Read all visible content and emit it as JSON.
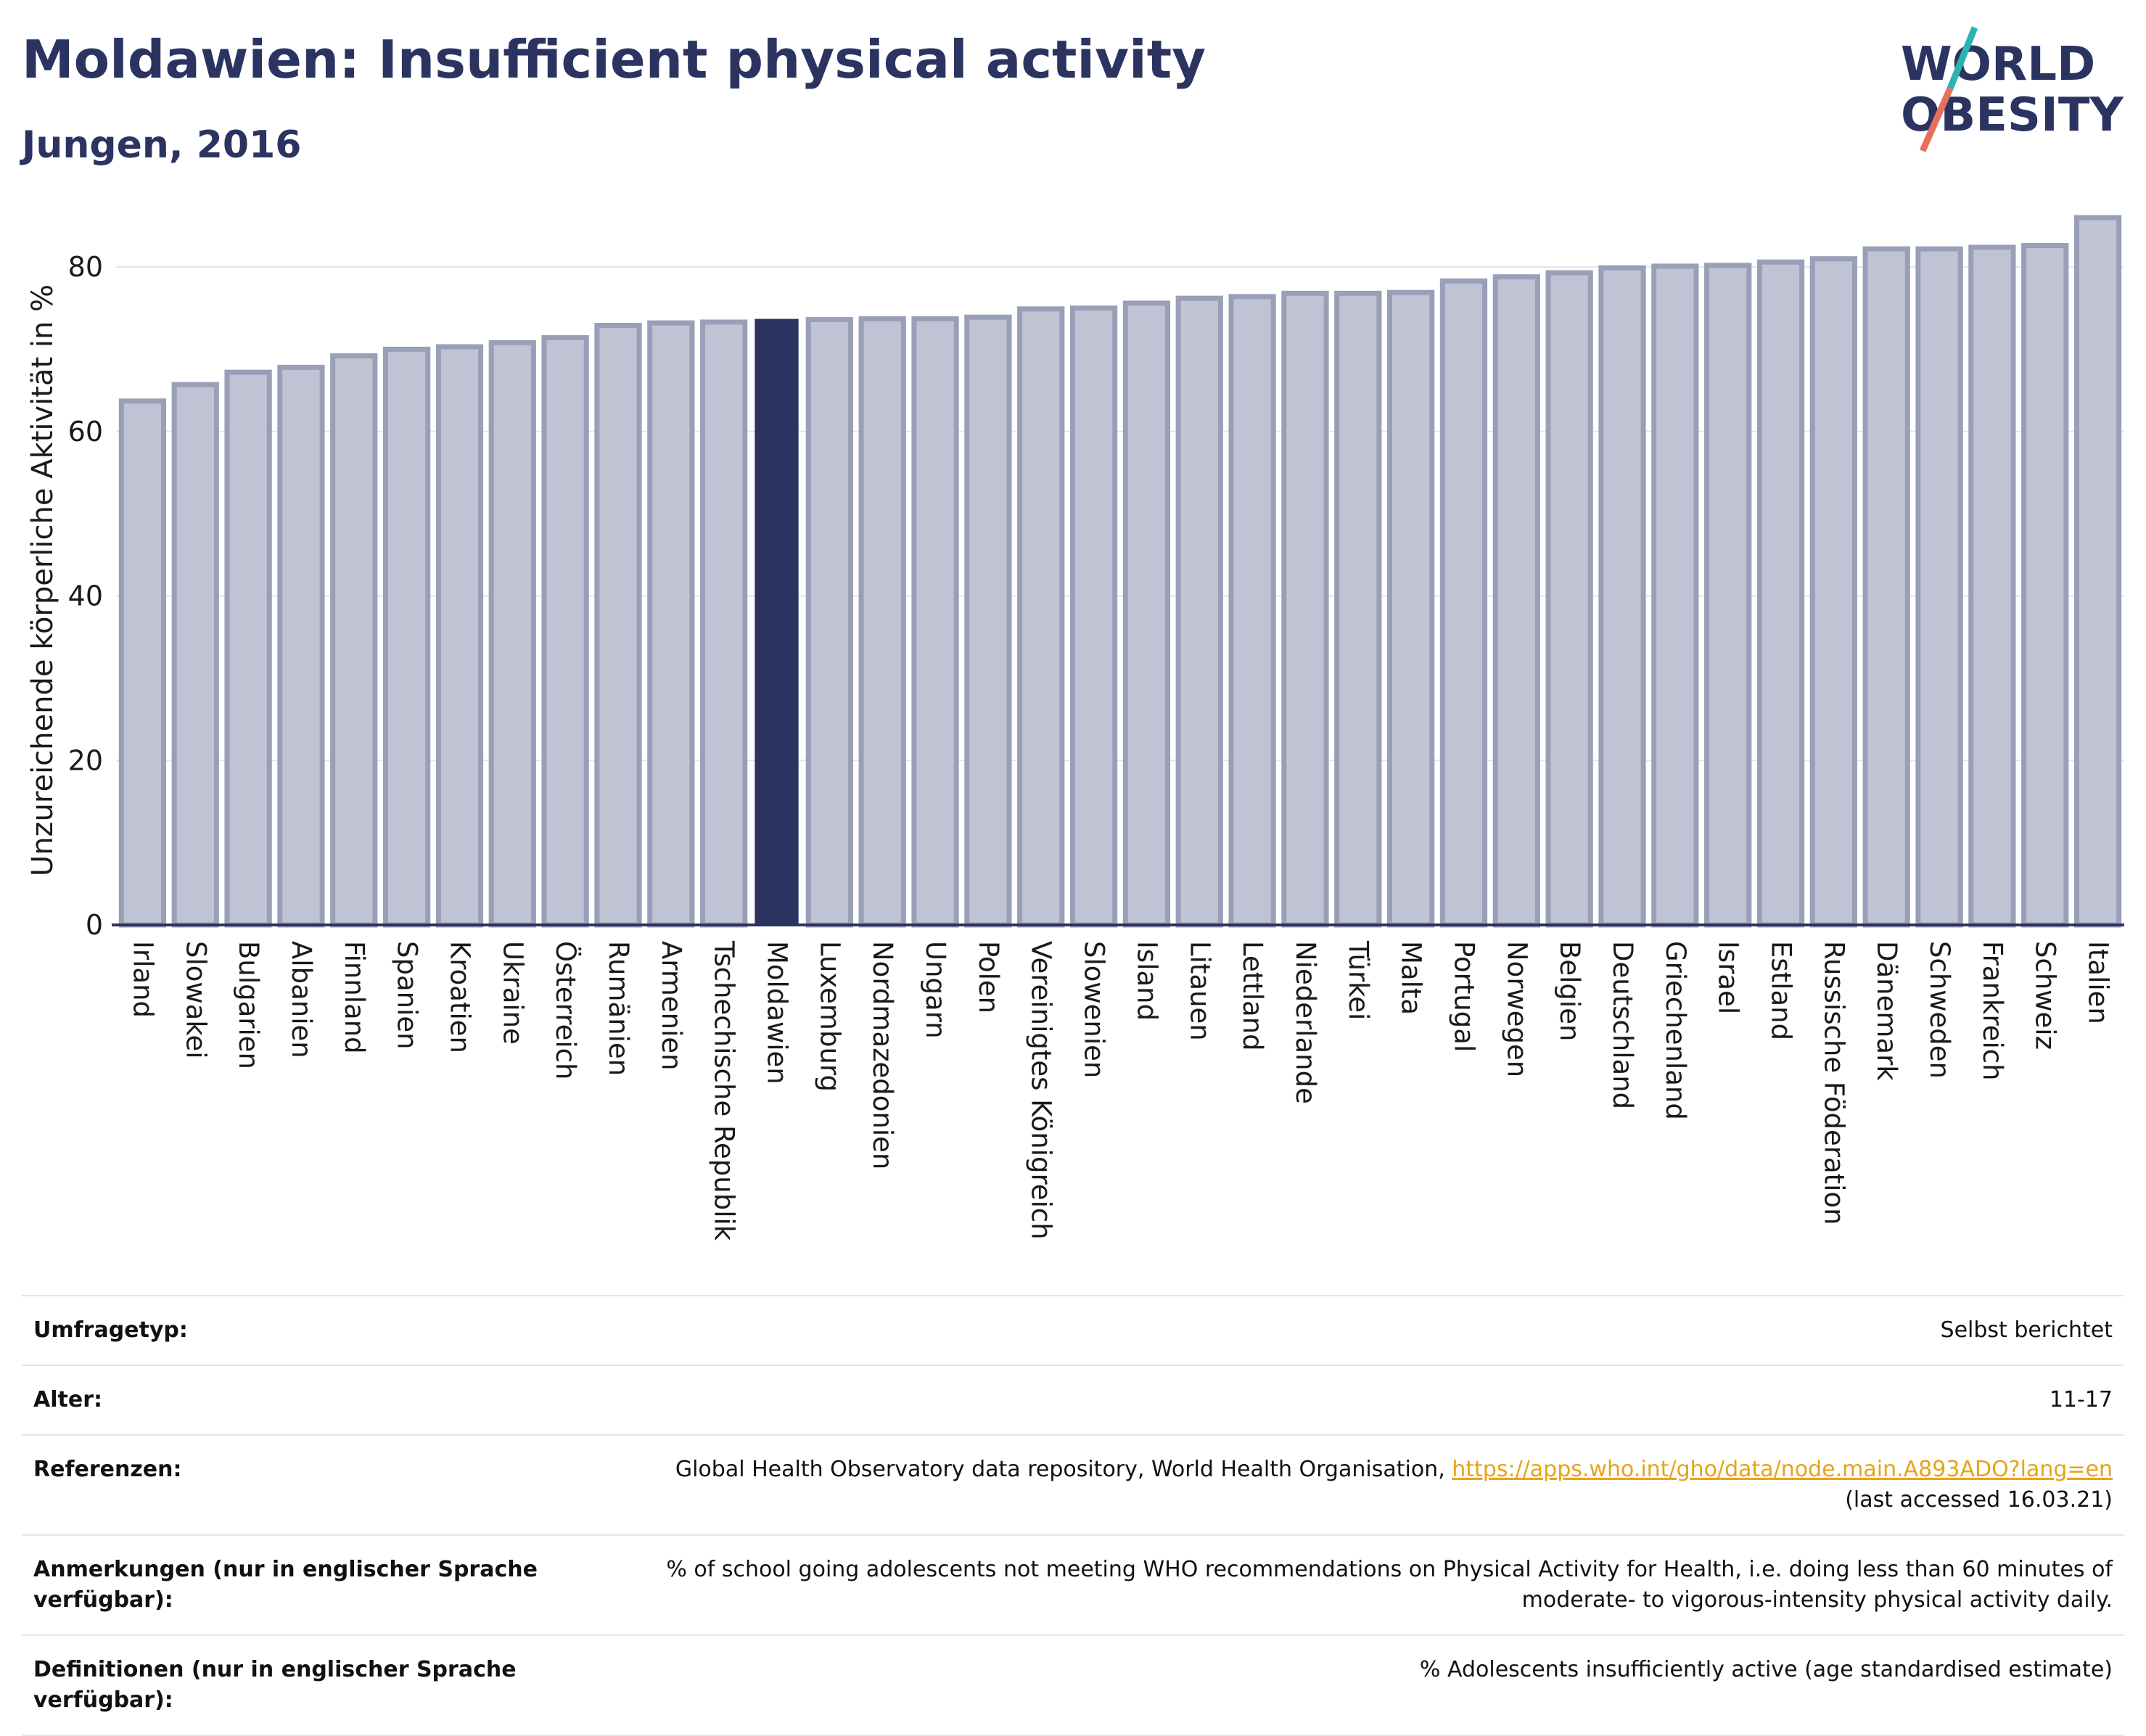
{
  "header": {
    "title": "Moldawien: Insufficient physical activity",
    "subtitle": "Jungen, 2016"
  },
  "logo": {
    "line1": "WORLD",
    "line2": "OBESITY",
    "colors": {
      "text": "#2b3461",
      "slash_teal": "#2bb3b1",
      "slash_coral": "#e8705a"
    }
  },
  "colors": {
    "bar_default": "#bfc3d3",
    "bar_default_stroke": "#9a9fb8",
    "bar_highlight": "#2b3461",
    "grid": "#e6e6e6",
    "axis": "#2b3461"
  },
  "chart_data": {
    "type": "bar",
    "title": "",
    "xlabel": "",
    "ylabel": "Unzureichende körperliche Aktivität in %",
    "ylim": [
      0,
      86
    ],
    "yticks": [
      0,
      20,
      40,
      60,
      80
    ],
    "grid": true,
    "highlight": "Moldawien",
    "categories": [
      "Irland",
      "Slowakei",
      "Bulgarien",
      "Albanien",
      "Finnland",
      "Spanien",
      "Kroatien",
      "Ukraine",
      "Österreich",
      "Rumänien",
      "Armenien",
      "Tschechische Republik",
      "Moldawien",
      "Luxemburg",
      "Nordmazedonien",
      "Ungarn",
      "Polen",
      "Vereinigtes Königreich",
      "Slowenien",
      "Island",
      "Litauen",
      "Lettland",
      "Niederlande",
      "Türkei",
      "Malta",
      "Portugal",
      "Norwegen",
      "Belgien",
      "Deutschland",
      "Griechenland",
      "Israel",
      "Estland",
      "Russische Föderation",
      "Dänemark",
      "Schweden",
      "Frankreich",
      "Schweiz",
      "Italien"
    ],
    "values": [
      63.7,
      65.7,
      67.2,
      67.8,
      69.2,
      70.0,
      70.3,
      70.8,
      71.4,
      72.9,
      73.2,
      73.3,
      73.6,
      73.6,
      73.7,
      73.7,
      73.9,
      74.9,
      75.0,
      75.6,
      76.2,
      76.4,
      76.8,
      76.8,
      76.9,
      78.3,
      78.8,
      79.3,
      79.9,
      80.1,
      80.2,
      80.6,
      81.0,
      82.2,
      82.2,
      82.4,
      82.6,
      86.0
    ]
  },
  "info": {
    "survey_label": "Umfragetyp:",
    "survey_value": "Selbst berichtet",
    "age_label": "Alter:",
    "age_value": "11-17",
    "references_label": "Referenzen:",
    "references_text": "Global Health Observatory data repository, World Health Organisation, ",
    "references_link": "https://apps.who.int/gho/data/node.main.A893ADO?lang=en",
    "references_accessed": "(last accessed 16.03.21)",
    "notes_label": "Anmerkungen (nur in englischer Sprache verfügbar):",
    "notes_value": "% of school going adolescents not meeting WHO recommendations on Physical Activity for Health, i.e. doing less than 60 minutes of moderate- to vigorous-intensity physical activity daily.",
    "definitions_label": "Definitionen (nur in englischer Sprache verfügbar):",
    "definitions_value": "% Adolescents insufficiently active (age standardised estimate)"
  }
}
